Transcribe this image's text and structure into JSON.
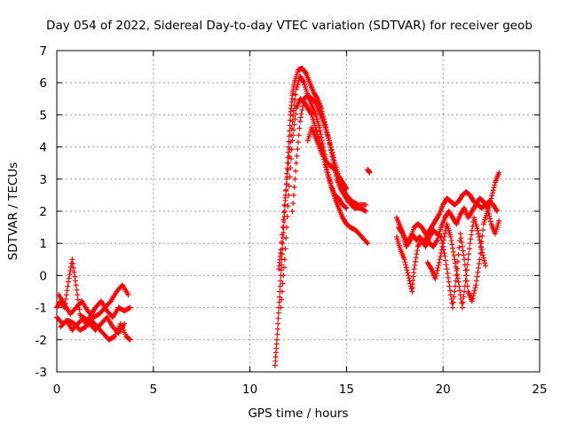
{
  "chart_data": {
    "type": "scatter",
    "title": "Day 054 of 2022, Sidereal Day-to-day VTEC variation (SDTVAR) for receiver geob",
    "xlabel": "GPS time / hours",
    "ylabel": "SDTVAR / TECUs",
    "xlim": [
      0,
      25
    ],
    "ylim": [
      -3,
      7
    ],
    "x_ticks": [
      "0",
      "5",
      "10",
      "15",
      "20",
      "25"
    ],
    "y_ticks": [
      "-3",
      "-2",
      "-1",
      "0",
      "1",
      "2",
      "3",
      "4",
      "5",
      "6",
      "7"
    ],
    "grid": true,
    "marker": "+",
    "colors": {
      "series": "#ff0000",
      "grid": "#a0a0a0",
      "axis": "#000000"
    },
    "series": [
      {
        "name": "SDTVAR",
        "tracks": [
          [
            [
              0.0,
              -1.0
            ],
            [
              0.2,
              -0.8
            ],
            [
              0.4,
              -1.0
            ],
            [
              0.6,
              -0.2
            ],
            [
              0.8,
              0.5
            ],
            [
              1.0,
              -0.3
            ],
            [
              1.2,
              -1.2
            ],
            [
              1.5,
              -1.5
            ],
            [
              1.8,
              -1.2
            ],
            [
              2.0,
              -1.0
            ],
            [
              2.3,
              -0.8
            ],
            [
              2.6,
              -1.1
            ],
            [
              2.9,
              -1.3
            ],
            [
              3.2,
              -1.0
            ],
            [
              3.5,
              -1.1
            ],
            [
              3.8,
              -1.0
            ]
          ],
          [
            [
              0.0,
              -1.3
            ],
            [
              0.3,
              -1.5
            ],
            [
              0.6,
              -1.4
            ],
            [
              0.9,
              -1.5
            ],
            [
              1.2,
              -1.7
            ],
            [
              1.5,
              -1.6
            ],
            [
              1.8,
              -1.4
            ],
            [
              2.1,
              -1.6
            ],
            [
              2.4,
              -1.8
            ],
            [
              2.7,
              -2.0
            ],
            [
              3.0,
              -1.9
            ],
            [
              3.3,
              -1.5
            ],
            [
              3.6,
              -1.9
            ],
            [
              3.8,
              -2.0
            ]
          ],
          [
            [
              0.1,
              -0.6
            ],
            [
              0.4,
              -0.9
            ],
            [
              0.7,
              -1.2
            ],
            [
              1.0,
              -1.0
            ],
            [
              1.3,
              -0.8
            ],
            [
              1.6,
              -1.1
            ],
            [
              1.9,
              -1.3
            ],
            [
              2.2,
              -1.2
            ],
            [
              2.5,
              -1.0
            ],
            [
              2.8,
              -0.8
            ],
            [
              3.1,
              -0.5
            ],
            [
              3.4,
              -0.3
            ],
            [
              3.7,
              -0.6
            ]
          ],
          [
            [
              0.2,
              -1.6
            ],
            [
              0.5,
              -1.4
            ],
            [
              0.8,
              -1.7
            ],
            [
              1.1,
              -1.5
            ],
            [
              1.4,
              -1.3
            ],
            [
              1.7,
              -1.5
            ],
            [
              2.0,
              -1.7
            ],
            [
              2.3,
              -1.5
            ],
            [
              2.6,
              -1.3
            ],
            [
              2.9,
              -1.6
            ],
            [
              3.2,
              -1.8
            ],
            [
              3.5,
              -1.5
            ]
          ],
          [
            [
              11.3,
              -2.8
            ],
            [
              11.4,
              -2.0
            ],
            [
              11.5,
              -1.0
            ],
            [
              11.6,
              0.0
            ],
            [
              11.7,
              1.0
            ],
            [
              11.8,
              2.0
            ],
            [
              11.9,
              3.0
            ],
            [
              12.0,
              4.0
            ],
            [
              12.1,
              5.0
            ],
            [
              12.2,
              5.6
            ],
            [
              12.3,
              6.0
            ],
            [
              12.5,
              6.4
            ],
            [
              12.7,
              6.45
            ],
            [
              12.9,
              6.3
            ],
            [
              13.1,
              6.0
            ],
            [
              13.3,
              5.7
            ],
            [
              13.5,
              5.5
            ],
            [
              13.7,
              5.2
            ],
            [
              13.9,
              4.7
            ],
            [
              14.1,
              4.2
            ],
            [
              14.3,
              3.6
            ],
            [
              14.5,
              3.0
            ],
            [
              14.7,
              2.7
            ],
            [
              14.9,
              2.5
            ],
            [
              15.1,
              2.3
            ],
            [
              15.4,
              2.1
            ],
            [
              15.7,
              2.1
            ],
            [
              16.0,
              2.0
            ]
          ],
          [
            [
              11.5,
              0.2
            ],
            [
              11.6,
              0.8
            ],
            [
              11.8,
              2.2
            ],
            [
              12.0,
              3.5
            ],
            [
              12.2,
              4.8
            ],
            [
              12.4,
              5.8
            ],
            [
              12.6,
              6.2
            ],
            [
              12.8,
              6.0
            ],
            [
              13.0,
              5.6
            ],
            [
              13.2,
              5.3
            ],
            [
              13.4,
              5.0
            ],
            [
              13.6,
              4.6
            ],
            [
              13.8,
              4.0
            ],
            [
              14.0,
              3.3
            ],
            [
              14.2,
              2.8
            ],
            [
              14.4,
              2.4
            ],
            [
              14.6,
              2.1
            ],
            [
              14.8,
              1.8
            ],
            [
              15.0,
              1.6
            ],
            [
              15.2,
              1.5
            ],
            [
              15.5,
              1.4
            ],
            [
              15.8,
              1.2
            ],
            [
              16.1,
              1.0
            ]
          ],
          [
            [
              11.6,
              -1.0
            ],
            [
              11.8,
              0.5
            ],
            [
              12.0,
              2.5
            ],
            [
              12.2,
              4.2
            ],
            [
              12.4,
              5.2
            ],
            [
              12.6,
              5.5
            ],
            [
              12.8,
              5.4
            ],
            [
              13.0,
              5.2
            ],
            [
              13.2,
              5.0
            ],
            [
              13.4,
              4.6
            ],
            [
              13.6,
              4.2
            ],
            [
              13.8,
              3.8
            ],
            [
              14.0,
              3.5
            ],
            [
              14.2,
              3.4
            ],
            [
              14.4,
              3.3
            ],
            [
              14.6,
              3.0
            ],
            [
              14.8,
              2.7
            ],
            [
              15.0,
              2.5
            ],
            [
              15.3,
              2.3
            ],
            [
              15.6,
              2.2
            ],
            [
              16.0,
              2.2
            ]
          ],
          [
            [
              12.2,
              2.0
            ],
            [
              12.4,
              3.5
            ],
            [
              12.6,
              4.8
            ],
            [
              12.8,
              5.5
            ],
            [
              13.0,
              5.6
            ],
            [
              13.2,
              5.5
            ],
            [
              13.4,
              5.4
            ],
            [
              13.6,
              5.1
            ],
            [
              13.8,
              4.8
            ],
            [
              14.0,
              4.4
            ],
            [
              14.2,
              4.0
            ],
            [
              14.4,
              3.5
            ],
            [
              14.6,
              3.1
            ],
            [
              14.8,
              2.9
            ],
            [
              15.0,
              2.7
            ]
          ],
          [
            [
              13.0,
              4.2
            ],
            [
              13.2,
              4.6
            ],
            [
              13.4,
              4.3
            ],
            [
              13.6,
              4.0
            ],
            [
              13.8,
              3.7
            ],
            [
              14.0,
              3.2
            ],
            [
              14.2,
              2.8
            ],
            [
              14.4,
              2.5
            ],
            [
              14.6,
              2.4
            ],
            [
              14.8,
              2.2
            ],
            [
              15.0,
              2.1
            ]
          ],
          [
            [
              16.1,
              3.3
            ],
            [
              16.2,
              3.2
            ]
          ],
          [
            [
              17.6,
              1.8
            ],
            [
              17.8,
              1.5
            ],
            [
              18.0,
              1.2
            ],
            [
              18.2,
              1.0
            ],
            [
              18.4,
              1.3
            ],
            [
              18.6,
              1.1
            ],
            [
              18.8,
              1.2
            ],
            [
              19.0,
              1.0
            ],
            [
              19.2,
              1.3
            ],
            [
              19.4,
              1.5
            ],
            [
              19.6,
              1.7
            ],
            [
              19.8,
              1.9
            ],
            [
              20.0,
              2.2
            ],
            [
              20.2,
              2.4
            ],
            [
              20.4,
              2.3
            ],
            [
              20.6,
              2.2
            ],
            [
              20.8,
              2.3
            ],
            [
              21.0,
              2.5
            ],
            [
              21.2,
              2.6
            ],
            [
              21.4,
              2.5
            ],
            [
              21.6,
              2.3
            ],
            [
              21.8,
              2.2
            ],
            [
              22.0,
              2.1
            ],
            [
              22.2,
              2.2
            ],
            [
              22.4,
              2.3
            ],
            [
              22.6,
              2.2
            ],
            [
              22.8,
              2.0
            ]
          ],
          [
            [
              17.6,
              1.2
            ],
            [
              17.8,
              0.8
            ],
            [
              18.0,
              0.5
            ],
            [
              18.2,
              0.0
            ],
            [
              18.4,
              -0.5
            ],
            [
              18.5,
              0.2
            ],
            [
              18.7,
              0.9
            ],
            [
              18.9,
              1.1
            ],
            [
              19.1,
              0.9
            ],
            [
              19.3,
              1.2
            ],
            [
              19.5,
              1.4
            ],
            [
              19.7,
              1.3
            ],
            [
              19.9,
              1.2
            ],
            [
              20.1,
              0.6
            ],
            [
              20.3,
              -0.2
            ],
            [
              20.5,
              -1.0
            ],
            [
              20.7,
              0.0
            ],
            [
              20.9,
              1.3
            ],
            [
              21.1,
              0.5
            ],
            [
              21.3,
              -0.5
            ],
            [
              21.5,
              -0.8
            ],
            [
              21.7,
              -0.3
            ],
            [
              21.9,
              0.5
            ],
            [
              22.1,
              1.6
            ],
            [
              22.3,
              2.0
            ],
            [
              22.5,
              2.4
            ],
            [
              22.7,
              2.9
            ],
            [
              22.9,
              3.2
            ]
          ],
          [
            [
              17.7,
              1.5
            ],
            [
              17.9,
              1.3
            ],
            [
              18.1,
              0.9
            ],
            [
              18.3,
              1.1
            ],
            [
              18.5,
              1.5
            ],
            [
              18.7,
              1.6
            ],
            [
              18.9,
              1.5
            ],
            [
              19.1,
              1.3
            ],
            [
              19.3,
              1.0
            ],
            [
              19.5,
              0.9
            ],
            [
              19.7,
              1.1
            ],
            [
              19.9,
              1.5
            ],
            [
              20.1,
              1.8
            ],
            [
              20.3,
              2.0
            ],
            [
              20.5,
              1.8
            ],
            [
              20.7,
              1.6
            ],
            [
              20.9,
              1.9
            ],
            [
              21.1,
              2.1
            ],
            [
              21.3,
              1.8
            ],
            [
              21.5,
              2.0
            ],
            [
              21.7,
              2.2
            ],
            [
              21.9,
              2.4
            ],
            [
              22.1,
              2.3
            ],
            [
              22.3,
              2.1
            ],
            [
              22.5,
              1.6
            ],
            [
              22.7,
              1.3
            ],
            [
              22.9,
              1.7
            ]
          ],
          [
            [
              19.2,
              0.4
            ],
            [
              19.4,
              0.2
            ],
            [
              19.6,
              -0.1
            ],
            [
              19.8,
              0.4
            ],
            [
              20.0,
              1.0
            ],
            [
              20.2,
              1.6
            ],
            [
              20.4,
              1.2
            ],
            [
              20.6,
              0.5
            ],
            [
              20.8,
              -0.2
            ],
            [
              21.0,
              -1.0
            ],
            [
              21.2,
              0.0
            ],
            [
              21.4,
              1.0
            ],
            [
              21.6,
              1.8
            ],
            [
              21.8,
              1.4
            ],
            [
              22.0,
              0.8
            ],
            [
              22.2,
              0.3
            ]
          ]
        ]
      }
    ]
  }
}
